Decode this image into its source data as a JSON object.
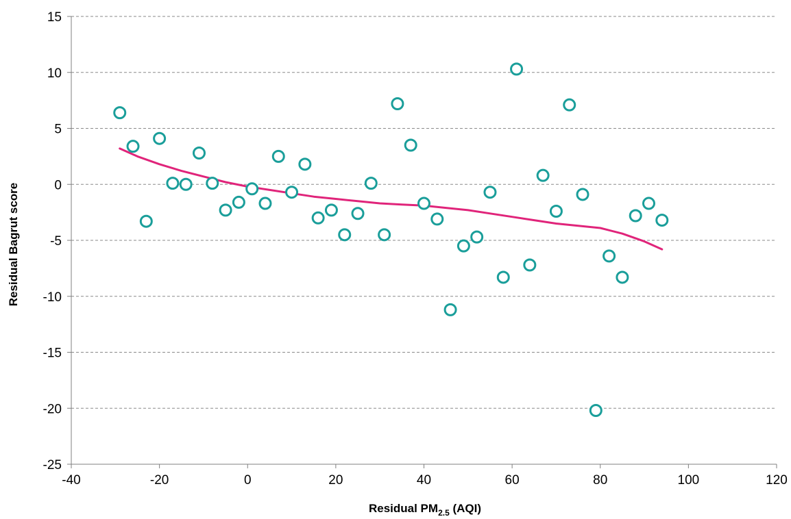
{
  "chart_data": {
    "type": "scatter",
    "title": "",
    "xlabel": "Residual PM",
    "xlabel_subscript": "2.5",
    "xlabel_suffix": " (AQI)",
    "ylabel": "Residual Bagrut score",
    "xlim": [
      -40,
      120
    ],
    "ylim": [
      -25,
      15
    ],
    "x_ticks": [
      -40,
      -20,
      0,
      20,
      40,
      60,
      80,
      100,
      120
    ],
    "y_ticks": [
      -25,
      -20,
      -15,
      -10,
      -5,
      0,
      5,
      10,
      15
    ],
    "grid": "horizontal dashed",
    "legend": "none",
    "series": [
      {
        "kind": "points",
        "color": "#1a9e9a",
        "marker": "open circle",
        "x": [
          -29,
          -26,
          -23,
          -20,
          -17,
          -14,
          -11,
          -8,
          -5,
          -2,
          1,
          4,
          7,
          10,
          13,
          16,
          19,
          22,
          25,
          28,
          31,
          34,
          37,
          40,
          43,
          46,
          49,
          52,
          55,
          58,
          61,
          64,
          67,
          70,
          73,
          76,
          79,
          82,
          85,
          88,
          91,
          94
        ],
        "y": [
          6.4,
          3.4,
          -3.3,
          4.1,
          0.1,
          0.0,
          2.8,
          0.1,
          -2.3,
          -1.6,
          -0.4,
          -1.7,
          2.5,
          -0.7,
          1.8,
          -3.0,
          -2.3,
          -4.5,
          -2.6,
          0.1,
          -4.5,
          7.2,
          3.5,
          -1.7,
          -3.1,
          -11.2,
          -5.5,
          -4.7,
          -0.7,
          -8.3,
          10.3,
          -7.2,
          0.8,
          -2.4,
          7.1,
          -0.9,
          -20.2,
          -6.4,
          -8.3,
          -2.8,
          -1.7,
          -3.2
        ]
      },
      {
        "kind": "trend-line",
        "color": "#e0247a",
        "x": [
          -29,
          -25,
          -20,
          -15,
          -10,
          -5,
          0,
          5,
          10,
          15,
          20,
          25,
          30,
          35,
          40,
          45,
          50,
          55,
          60,
          65,
          70,
          75,
          80,
          85,
          90,
          94
        ],
        "y": [
          3.2,
          2.5,
          1.8,
          1.2,
          0.7,
          0.2,
          -0.2,
          -0.5,
          -0.8,
          -1.1,
          -1.3,
          -1.5,
          -1.7,
          -1.8,
          -1.9,
          -2.1,
          -2.3,
          -2.6,
          -2.9,
          -3.2,
          -3.5,
          -3.7,
          -3.9,
          -4.4,
          -5.1,
          -5.8
        ]
      }
    ]
  }
}
